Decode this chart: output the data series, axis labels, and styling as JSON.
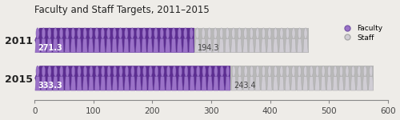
{
  "title": "Faculty and Staff Targets, 2011–2015",
  "years": [
    "2011",
    "2015"
  ],
  "faculty": [
    271.3,
    333.3
  ],
  "staff": [
    194.3,
    243.4
  ],
  "faculty_bar_color": "#5c2d91",
  "staff_bar_color": "#b8b8b8",
  "faculty_icon_color": "#9b72c8",
  "staff_icon_color": "#d0cdd4",
  "faculty_icon_outline": "#7a5aaa",
  "staff_icon_outline": "#aaaaaa",
  "xlim": [
    0,
    600
  ],
  "title_fontsize": 8.5,
  "label_fontsize": 9,
  "tick_fontsize": 7.5,
  "legend_faculty": "Faculty",
  "legend_staff": "Staff",
  "background_color": "#eeece8",
  "text_color_light": "#ffffff",
  "text_color_dark": "#444444",
  "bar_label_fontsize": 7,
  "n_faculty_icons_2011": 27,
  "n_staff_icons_2011": 19,
  "n_faculty_icons_2015": 33,
  "n_staff_icons_2015": 24,
  "icon_size": 38
}
